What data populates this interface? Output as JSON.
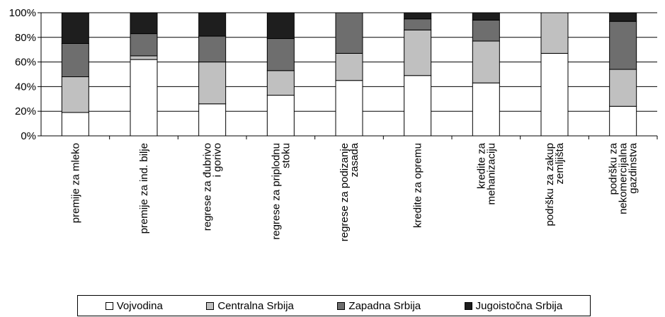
{
  "chart_data": {
    "type": "bar",
    "stacked": true,
    "categories": [
      [
        "premije za mleko"
      ],
      [
        "premije za ind. bilje"
      ],
      [
        "regrese za đubrivo",
        "i gorivo"
      ],
      [
        "regrese za priplodnu",
        "stoku"
      ],
      [
        "regrese za podizanje",
        "zasada"
      ],
      [
        "kredite za opremu"
      ],
      [
        "kredite za",
        "mehanizaciju"
      ],
      [
        "podršku za zakup",
        "zemljišta"
      ],
      [
        "podršku za",
        "nekomercijalna",
        "gazdinstva"
      ]
    ],
    "series": [
      {
        "name": "Vojvodina",
        "color": "#ffffff",
        "values": [
          19,
          62,
          26,
          33,
          45,
          49,
          43,
          67,
          24
        ]
      },
      {
        "name": "Centralna Srbija",
        "color": "#c0c0c0",
        "values": [
          29,
          3,
          34,
          20,
          22,
          37,
          34,
          33,
          30
        ]
      },
      {
        "name": "Zapadna Srbija",
        "color": "#6e6e6e",
        "values": [
          27,
          18,
          21,
          26,
          33,
          9,
          17,
          0,
          39
        ]
      },
      {
        "name": "Jugoistočna Srbija",
        "color": "#1e1e1e",
        "values": [
          25,
          17,
          19,
          21,
          0,
          5,
          6,
          0,
          7
        ]
      }
    ],
    "yticks": [
      "0%",
      "20%",
      "40%",
      "60%",
      "80%",
      "100%"
    ],
    "ylim": [
      0,
      100
    ],
    "grid": true,
    "legend_position": "bottom"
  }
}
